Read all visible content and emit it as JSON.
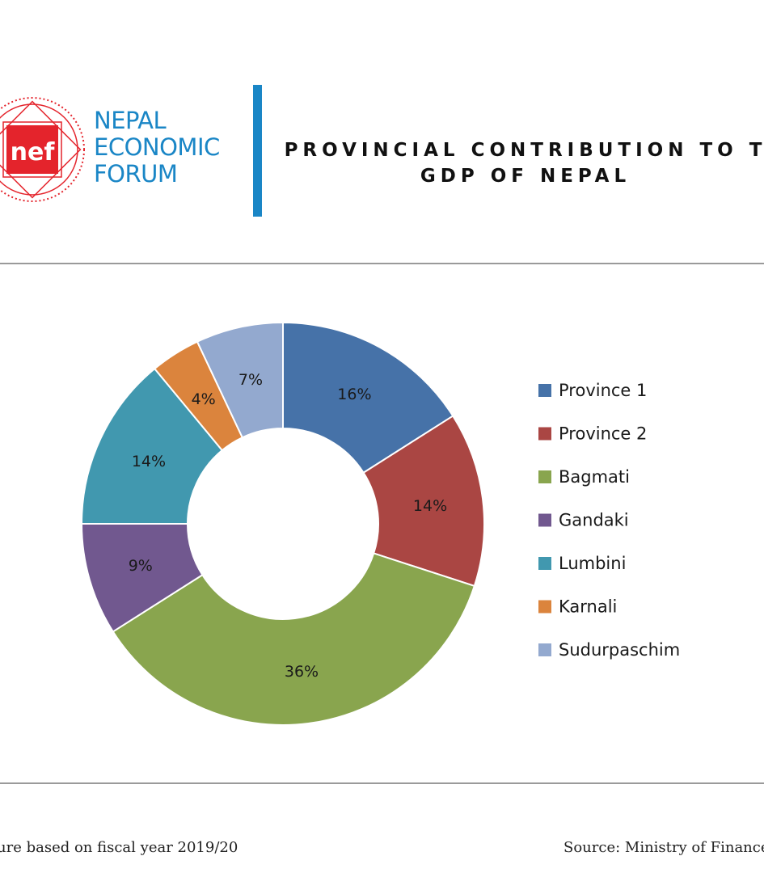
{
  "header": {
    "org_name_lines": [
      "NEPAL",
      "ECONOMIC",
      "FORUM"
    ],
    "logo_text": "nef",
    "title_lines": [
      "PROVINCIAL CONTRIBUTION TO T",
      "GDP OF NEPAL"
    ],
    "accent_color": "#1a86c6",
    "logo_color": "#e4242c"
  },
  "chart_data": {
    "type": "pie",
    "donut": true,
    "categories": [
      "Province 1",
      "Province 2",
      "Bagmati",
      "Gandaki",
      "Lumbini",
      "Karnali",
      "Sudurpaschim"
    ],
    "values": [
      16,
      14,
      36,
      9,
      14,
      4,
      7
    ],
    "labels": [
      "16%",
      "14%",
      "36%",
      "9%",
      "14%",
      "4%",
      "7%"
    ],
    "colors": [
      "#4672a8",
      "#aa4643",
      "#89a54e",
      "#71588f",
      "#4198af",
      "#db843d",
      "#93a9cf"
    ],
    "legend_position": "right"
  },
  "footer": {
    "note": "ure based on fiscal year 2019/20",
    "source": "Source: Ministry of Finance"
  }
}
